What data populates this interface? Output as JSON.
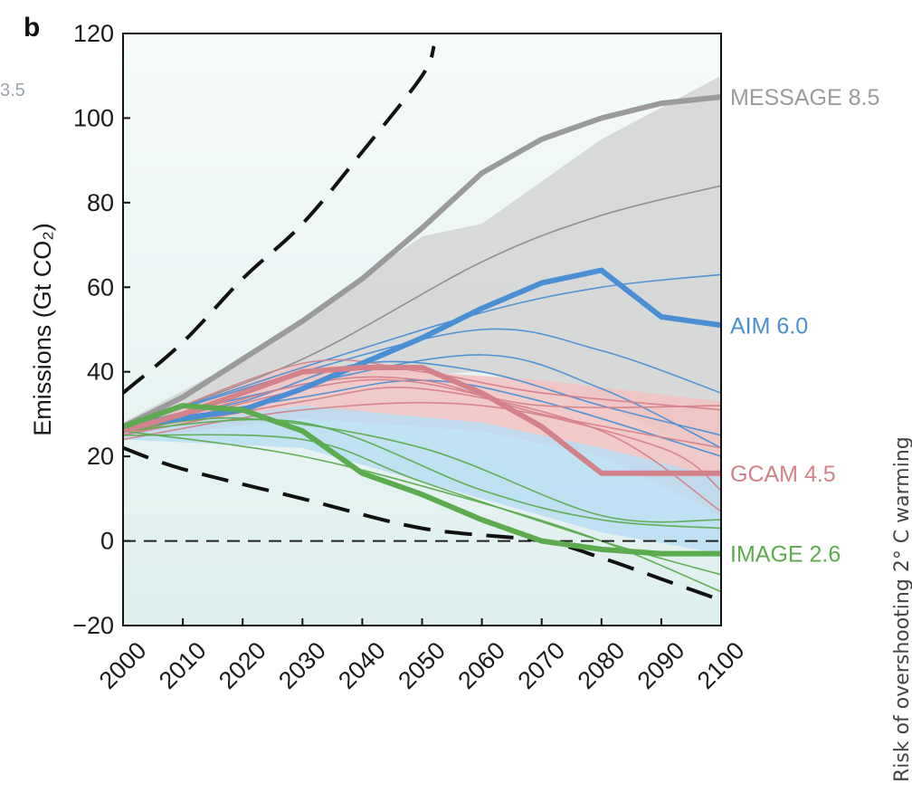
{
  "chart_data": {
    "type": "line",
    "panel_label": "b",
    "ylabel": "Emissions (Gt CO₂)",
    "xlabel": "",
    "xlim": [
      2000,
      2100
    ],
    "ylim": [
      -20,
      120
    ],
    "x_ticks": [
      "2000",
      "2010",
      "2020",
      "2030",
      "2040",
      "2050",
      "2060",
      "2070",
      "2080",
      "2090",
      "2100"
    ],
    "y_ticks": [
      "−20",
      "0",
      "20",
      "40",
      "60",
      "80",
      "100",
      "120"
    ],
    "grid": false,
    "zero_reference_line": true,
    "series": [
      {
        "name": "MESSAGE 8.5",
        "color": "#9b9b9b",
        "emphasis": true,
        "x": [
          2000,
          2010,
          2020,
          2030,
          2040,
          2050,
          2060,
          2070,
          2080,
          2090,
          2100
        ],
        "y": [
          27,
          34,
          43,
          52,
          62,
          74,
          87,
          95,
          100,
          103.5,
          105
        ]
      },
      {
        "name": "AIM 6.0",
        "color": "#4a8fd4",
        "emphasis": true,
        "x": [
          2000,
          2010,
          2020,
          2030,
          2040,
          2050,
          2060,
          2070,
          2080,
          2090,
          2100
        ],
        "y": [
          27,
          29,
          31,
          36,
          42,
          48,
          55,
          61,
          64,
          53,
          51
        ]
      },
      {
        "name": "GCAM 4.5",
        "color": "#d4828a",
        "emphasis": true,
        "x": [
          2000,
          2010,
          2020,
          2030,
          2040,
          2050,
          2060,
          2070,
          2080,
          2090,
          2100
        ],
        "y": [
          26,
          30,
          35,
          40,
          41,
          41,
          35,
          27,
          16,
          16,
          16
        ]
      },
      {
        "name": "IMAGE 2.6",
        "color": "#5cab4e",
        "emphasis": true,
        "x": [
          2000,
          2010,
          2020,
          2030,
          2040,
          2050,
          2060,
          2070,
          2080,
          2090,
          2100
        ],
        "y": [
          27,
          32,
          31,
          26,
          16,
          11,
          5,
          0,
          -2,
          -3,
          -3
        ]
      }
    ],
    "thin_lines": [
      {
        "color": "#8c8c8c",
        "x": [
          2000,
          2030,
          2060,
          2080,
          2100
        ],
        "y": [
          27,
          43,
          66,
          77,
          84
        ]
      },
      {
        "color": "#4a8fd4",
        "x": [
          2000,
          2030,
          2060,
          2080,
          2100
        ],
        "y": [
          27,
          41,
          54,
          60,
          63
        ]
      },
      {
        "color": "#4a8fd4",
        "x": [
          2000,
          2020,
          2040,
          2060,
          2080,
          2100
        ],
        "y": [
          27,
          33,
          42,
          40,
          32,
          25
        ]
      },
      {
        "color": "#4a8fd4",
        "x": [
          2000,
          2030,
          2060,
          2080,
          2100
        ],
        "y": [
          27,
          40,
          50,
          45,
          35
        ]
      },
      {
        "color": "#4a8fd4",
        "x": [
          2000,
          2030,
          2060,
          2080,
          2100
        ],
        "y": [
          27,
          37,
          44,
          36,
          22
        ]
      },
      {
        "color": "#4a8fd4",
        "x": [
          2000,
          2030,
          2050,
          2070,
          2100
        ],
        "y": [
          27,
          34,
          38,
          33,
          20
        ]
      },
      {
        "color": "#d4828a",
        "x": [
          2000,
          2030,
          2050,
          2070,
          2100
        ],
        "y": [
          26,
          42,
          40,
          35,
          31
        ]
      },
      {
        "color": "#d4828a",
        "x": [
          2000,
          2030,
          2050,
          2070,
          2100
        ],
        "y": [
          25,
          37,
          38,
          30,
          22
        ]
      },
      {
        "color": "#d4828a",
        "x": [
          2000,
          2030,
          2050,
          2080,
          2100
        ],
        "y": [
          25,
          33,
          36,
          26,
          7
        ]
      },
      {
        "color": "#d4828a",
        "x": [
          2000,
          2040,
          2070,
          2100
        ],
        "y": [
          25,
          38,
          32,
          32
        ]
      },
      {
        "color": "#d4828a",
        "x": [
          2000,
          2030,
          2060,
          2090,
          2100
        ],
        "y": [
          24,
          31,
          32,
          22,
          12
        ]
      },
      {
        "color": "#5cab4e",
        "x": [
          2000,
          2030,
          2060,
          2080,
          2100
        ],
        "y": [
          26,
          28,
          12,
          5,
          3
        ]
      },
      {
        "color": "#5cab4e",
        "x": [
          2000,
          2030,
          2050,
          2080,
          2100
        ],
        "y": [
          25,
          24,
          14,
          0,
          -8
        ]
      },
      {
        "color": "#5cab4e",
        "x": [
          2000,
          2030,
          2060,
          2080,
          2100
        ],
        "y": [
          26,
          20,
          9,
          0,
          -12
        ]
      },
      {
        "color": "#5cab4e",
        "x": [
          2000,
          2020,
          2050,
          2080,
          2100
        ],
        "y": [
          26,
          29,
          22,
          6,
          5
        ]
      }
    ],
    "dashed_envelope": [
      {
        "name": "upper",
        "color": "#111111",
        "x": [
          2000,
          2010,
          2020,
          2030,
          2040,
          2050,
          2052
        ],
        "y": [
          35,
          47,
          62,
          75,
          92,
          110,
          117
        ]
      },
      {
        "name": "lower",
        "color": "#111111",
        "x": [
          2000,
          2010,
          2030,
          2050,
          2070,
          2080,
          2090,
          2100
        ],
        "y": [
          22,
          17,
          10,
          3,
          0,
          -4,
          -9,
          -14
        ]
      }
    ],
    "bands": [
      {
        "color": "#d3d3d3",
        "upper": {
          "x": [
            2000,
            2020,
            2050,
            2060,
            2080,
            2100
          ],
          "y": [
            28,
            43,
            72,
            75,
            95,
            110
          ]
        },
        "lower": {
          "x": [
            2000,
            2030,
            2060,
            2080,
            2100
          ],
          "y": [
            27,
            38,
            40,
            32,
            20
          ]
        }
      },
      {
        "color": "#f2c2c2",
        "upper": {
          "x": [
            2000,
            2030,
            2050,
            2070,
            2100
          ],
          "y": [
            27,
            42,
            40,
            38,
            33
          ]
        },
        "lower": {
          "x": [
            2000,
            2030,
            2060,
            2080,
            2100
          ],
          "y": [
            24,
            29,
            26,
            20,
            6
          ]
        }
      },
      {
        "color": "#b8def3",
        "upper": {
          "x": [
            2000,
            2030,
            2060,
            2080,
            2100
          ],
          "y": [
            26,
            32,
            28,
            22,
            15
          ]
        },
        "lower": {
          "x": [
            2000,
            2030,
            2060,
            2080,
            2100
          ],
          "y": [
            24,
            22,
            10,
            2,
            -3
          ]
        }
      }
    ]
  },
  "edge_fragments": {
    "top_left": "3.5",
    "right_vertical": "Risk of overshooting 2° C warming"
  }
}
